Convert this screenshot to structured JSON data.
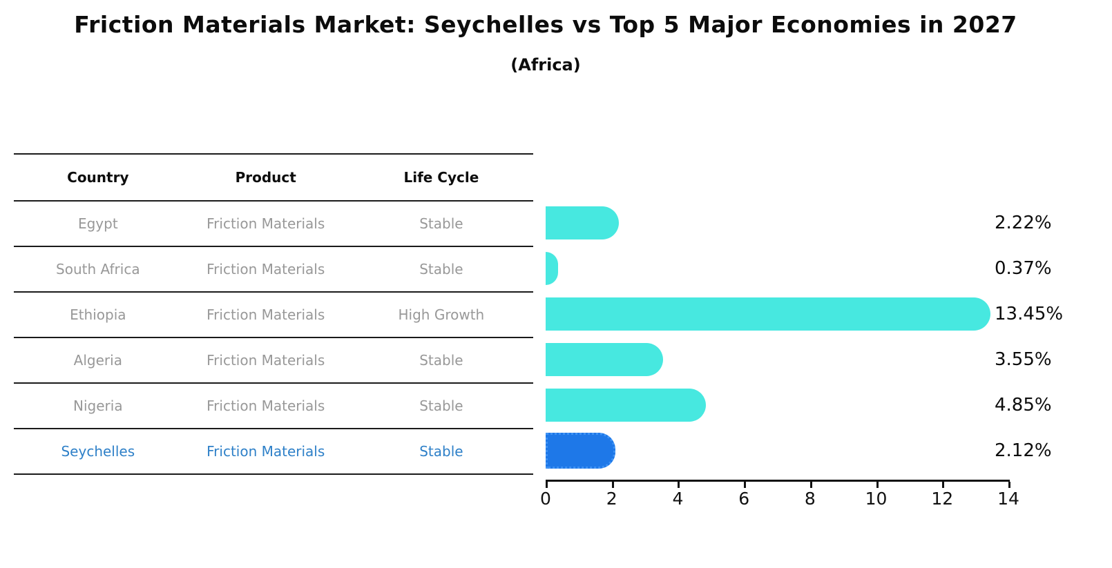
{
  "title": "Friction Materials Market: Seychelles vs Top 5 Major Economies in 2027",
  "subtitle": "(Africa)",
  "colors": {
    "bar": "#47e8e0",
    "highlight_bar": "#1e78e8",
    "highlight_bar_border": "#3f93f5",
    "highlight_text": "#2e80c8",
    "table_text": "#989898",
    "header_text": "#0d0d0d",
    "axis_text": "#111111"
  },
  "table": {
    "headers": [
      "Country",
      "Product",
      "Life Cycle"
    ],
    "rows": [
      {
        "country": "Egypt",
        "product": "Friction Materials",
        "life_cycle": "Stable",
        "highlight": false
      },
      {
        "country": "South Africa",
        "product": "Friction Materials",
        "life_cycle": "Stable",
        "highlight": false
      },
      {
        "country": "Ethiopia",
        "product": "Friction Materials",
        "life_cycle": "High Growth",
        "highlight": false
      },
      {
        "country": "Algeria",
        "product": "Friction Materials",
        "life_cycle": "Stable",
        "highlight": false
      },
      {
        "country": "Nigeria",
        "product": "Friction Materials",
        "life_cycle": "Stable",
        "highlight": false
      },
      {
        "country": "Seychelles",
        "product": "Friction Materials",
        "life_cycle": "Stable",
        "highlight": true
      }
    ]
  },
  "chart_data": {
    "type": "bar",
    "orientation": "horizontal",
    "title": "Friction Materials Market: Seychelles vs Top 5 Major Economies in 2027 (Africa)",
    "xlabel": "",
    "ylabel": "",
    "categories": [
      "Egypt",
      "South Africa",
      "Ethiopia",
      "Algeria",
      "Nigeria",
      "Seychelles"
    ],
    "values": [
      2.22,
      0.37,
      13.45,
      3.55,
      4.85,
      2.12
    ],
    "value_labels": [
      "2.22%",
      "0.37%",
      "13.45%",
      "3.55%",
      "4.85%",
      "2.12%"
    ],
    "highlight_index": 5,
    "xlim": [
      0,
      14
    ],
    "x_ticks": [
      0,
      2,
      4,
      6,
      8,
      10,
      12,
      14
    ],
    "grid": false,
    "legend": false
  }
}
